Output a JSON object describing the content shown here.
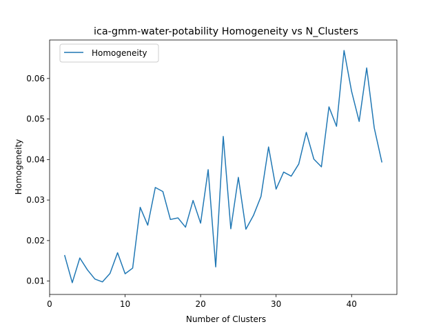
{
  "chart_data": {
    "type": "line",
    "title": "ica-gmm-water-potability Homogeneity vs N_Clusters",
    "xlabel": "Number of Clusters",
    "ylabel": "Homogeneity",
    "xlim": [
      0,
      46
    ],
    "ylim": [
      0.0067,
      0.0695
    ],
    "xticks": [
      0,
      10,
      20,
      30,
      40
    ],
    "xtick_labels": [
      "0",
      "10",
      "20",
      "30",
      "40"
    ],
    "yticks": [
      0.01,
      0.02,
      0.03,
      0.04,
      0.05,
      0.06
    ],
    "ytick_labels": [
      "0.01",
      "0.02",
      "0.03",
      "0.04",
      "0.05",
      "0.06"
    ],
    "grid": false,
    "legend": "upper-left",
    "series": [
      {
        "name": "Homogeneity",
        "color": "#1f77b4",
        "x": [
          2,
          3,
          4,
          5,
          6,
          7,
          8,
          9,
          10,
          11,
          12,
          13,
          14,
          15,
          16,
          17,
          18,
          19,
          20,
          21,
          22,
          23,
          24,
          25,
          26,
          27,
          28,
          29,
          30,
          31,
          32,
          33,
          34,
          35,
          36,
          37,
          38,
          39,
          40,
          41,
          42,
          43,
          44
        ],
        "y": [
          0.0163,
          0.0096,
          0.0157,
          0.0128,
          0.0105,
          0.0098,
          0.0119,
          0.017,
          0.0118,
          0.0132,
          0.0282,
          0.0238,
          0.0331,
          0.0321,
          0.0252,
          0.0256,
          0.0233,
          0.0299,
          0.0243,
          0.0375,
          0.0135,
          0.0457,
          0.0229,
          0.0356,
          0.0228,
          0.0262,
          0.0309,
          0.0431,
          0.0327,
          0.0369,
          0.0359,
          0.0389,
          0.0467,
          0.0401,
          0.0382,
          0.053,
          0.0482,
          0.0669,
          0.0568,
          0.0494,
          0.0626,
          0.0478,
          0.0394
        ]
      }
    ]
  }
}
